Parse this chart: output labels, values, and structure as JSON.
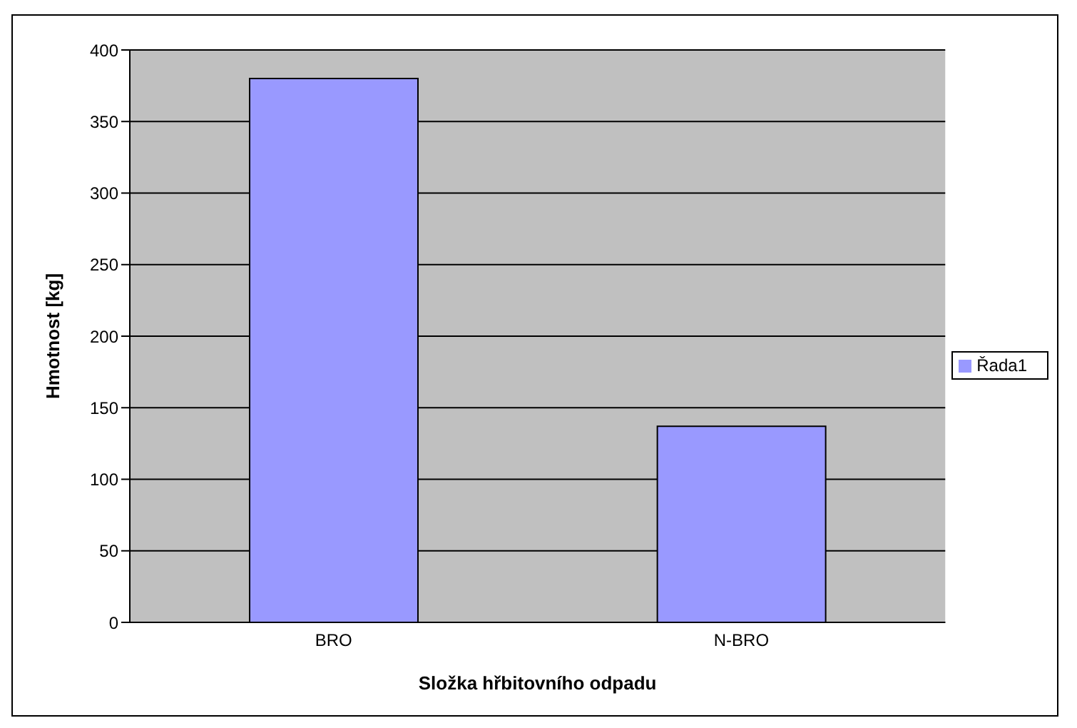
{
  "chart_data": {
    "type": "bar",
    "xlabel": "Složka hřbitovního odpadu",
    "ylabel": "Hmotnost [kg]",
    "categories": [
      "BRO",
      "N-BRO"
    ],
    "series": [
      {
        "name": "Řada1",
        "color": "#9999ff",
        "values": [
          380,
          137
        ]
      }
    ],
    "ylim": [
      0,
      400
    ],
    "yticks": [
      0,
      50,
      100,
      150,
      200,
      250,
      300,
      350,
      400
    ],
    "grid": "y",
    "legend": "right"
  }
}
